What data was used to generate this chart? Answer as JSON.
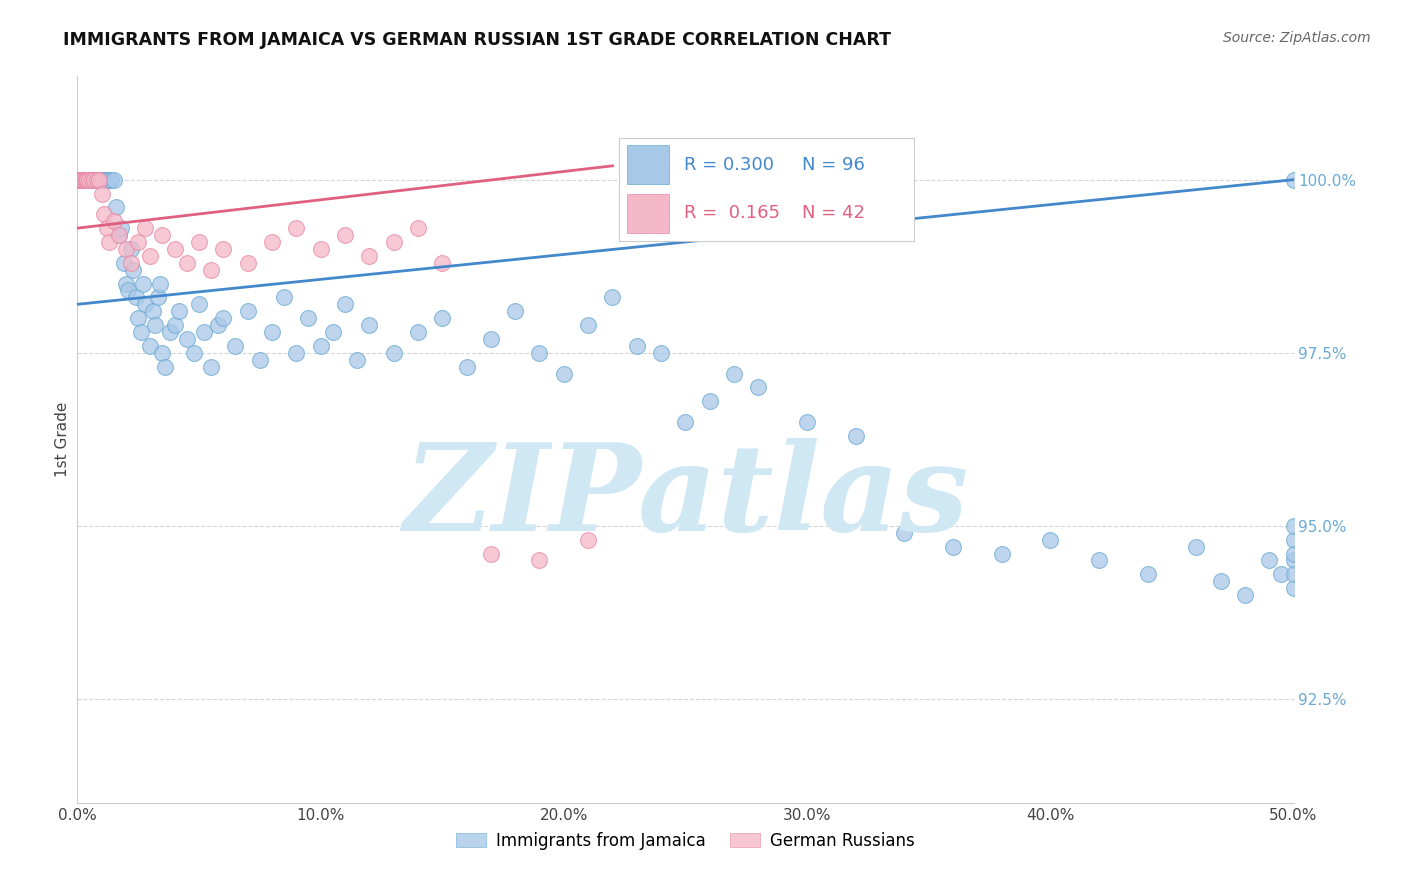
{
  "title": "IMMIGRANTS FROM JAMAICA VS GERMAN RUSSIAN 1ST GRADE CORRELATION CHART",
  "source": "Source: ZipAtlas.com",
  "ylabel": "1st Grade",
  "xlim": [
    0.0,
    50.0
  ],
  "ylim": [
    91.0,
    101.5
  ],
  "yticks": [
    92.5,
    95.0,
    97.5,
    100.0
  ],
  "ytick_labels": [
    "92.5%",
    "95.0%",
    "97.5%",
    "100.0%"
  ],
  "xticks": [
    0.0,
    10.0,
    20.0,
    30.0,
    40.0,
    50.0
  ],
  "xtick_labels": [
    "0.0%",
    "10.0%",
    "20.0%",
    "30.0%",
    "40.0%",
    "50.0%"
  ],
  "legend_labels": [
    "Immigrants from Jamaica",
    "German Russians"
  ],
  "legend_R": [
    0.3,
    0.165
  ],
  "legend_N": [
    96,
    42
  ],
  "blue_color": "#a8c8e8",
  "pink_color": "#f4b8c8",
  "blue_edge_color": "#6aaad4",
  "pink_edge_color": "#e888a8",
  "blue_line_color": "#4488cc",
  "pink_line_color": "#e06080",
  "watermark": "ZIPatlas",
  "watermark_color": "#d0e8f4",
  "tick_color_y": "#6aaad4",
  "tick_color_x": "#444444",
  "grid_color": "#cccccc",
  "blue_scatter_x": [
    0.15,
    0.2,
    0.3,
    0.35,
    0.4,
    0.5,
    0.5,
    0.6,
    0.7,
    0.8,
    0.9,
    1.0,
    1.0,
    1.1,
    1.2,
    1.3,
    1.4,
    1.5,
    1.6,
    1.7,
    1.8,
    1.9,
    2.0,
    2.1,
    2.2,
    2.3,
    2.4,
    2.5,
    2.6,
    2.7,
    2.8,
    3.0,
    3.1,
    3.2,
    3.3,
    3.4,
    3.5,
    3.6,
    3.8,
    4.0,
    4.2,
    4.5,
    4.8,
    5.0,
    5.2,
    5.5,
    5.8,
    6.0,
    6.5,
    7.0,
    7.5,
    8.0,
    8.5,
    9.0,
    9.5,
    10.0,
    10.5,
    11.0,
    11.5,
    12.0,
    13.0,
    14.0,
    15.0,
    16.0,
    17.0,
    18.0,
    19.0,
    20.0,
    21.0,
    22.0,
    23.0,
    24.0,
    25.0,
    26.0,
    27.0,
    28.0,
    30.0,
    32.0,
    34.0,
    36.0,
    38.0,
    40.0,
    42.0,
    44.0,
    46.0,
    47.0,
    48.0,
    49.0,
    49.5,
    50.0,
    50.0,
    50.0,
    50.0,
    50.0,
    50.0,
    50.0
  ],
  "blue_scatter_y": [
    100.0,
    100.0,
    100.0,
    100.0,
    100.0,
    100.0,
    100.0,
    100.0,
    100.0,
    100.0,
    100.0,
    100.0,
    100.0,
    100.0,
    100.0,
    100.0,
    100.0,
    100.0,
    99.6,
    99.2,
    99.3,
    98.8,
    98.5,
    98.4,
    99.0,
    98.7,
    98.3,
    98.0,
    97.8,
    98.5,
    98.2,
    97.6,
    98.1,
    97.9,
    98.3,
    98.5,
    97.5,
    97.3,
    97.8,
    97.9,
    98.1,
    97.7,
    97.5,
    98.2,
    97.8,
    97.3,
    97.9,
    98.0,
    97.6,
    98.1,
    97.4,
    97.8,
    98.3,
    97.5,
    98.0,
    97.6,
    97.8,
    98.2,
    97.4,
    97.9,
    97.5,
    97.8,
    98.0,
    97.3,
    97.7,
    98.1,
    97.5,
    97.2,
    97.9,
    98.3,
    97.6,
    97.5,
    96.5,
    96.8,
    97.2,
    97.0,
    96.5,
    96.3,
    94.9,
    94.7,
    94.6,
    94.8,
    94.5,
    94.3,
    94.7,
    94.2,
    94.0,
    94.5,
    94.3,
    94.1,
    94.5,
    94.8,
    95.0,
    94.6,
    94.3,
    100.0
  ],
  "pink_scatter_x": [
    0.05,
    0.1,
    0.15,
    0.2,
    0.25,
    0.3,
    0.35,
    0.4,
    0.5,
    0.6,
    0.7,
    0.8,
    0.9,
    1.0,
    1.1,
    1.2,
    1.3,
    1.5,
    1.7,
    2.0,
    2.2,
    2.5,
    2.8,
    3.0,
    3.5,
    4.0,
    4.5,
    5.0,
    5.5,
    6.0,
    7.0,
    8.0,
    9.0,
    10.0,
    11.0,
    12.0,
    13.0,
    14.0,
    15.0,
    17.0,
    19.0,
    21.0
  ],
  "pink_scatter_y": [
    100.0,
    100.0,
    100.0,
    100.0,
    100.0,
    100.0,
    100.0,
    100.0,
    100.0,
    100.0,
    100.0,
    100.0,
    100.0,
    99.8,
    99.5,
    99.3,
    99.1,
    99.4,
    99.2,
    99.0,
    98.8,
    99.1,
    99.3,
    98.9,
    99.2,
    99.0,
    98.8,
    99.1,
    98.7,
    99.0,
    98.8,
    99.1,
    99.3,
    99.0,
    99.2,
    98.9,
    99.1,
    99.3,
    98.8,
    94.6,
    94.5,
    94.8
  ],
  "blue_line_x": [
    0,
    50
  ],
  "blue_line_y": [
    98.2,
    100.0
  ],
  "pink_line_x": [
    0,
    22
  ],
  "pink_line_y": [
    99.3,
    100.2
  ]
}
